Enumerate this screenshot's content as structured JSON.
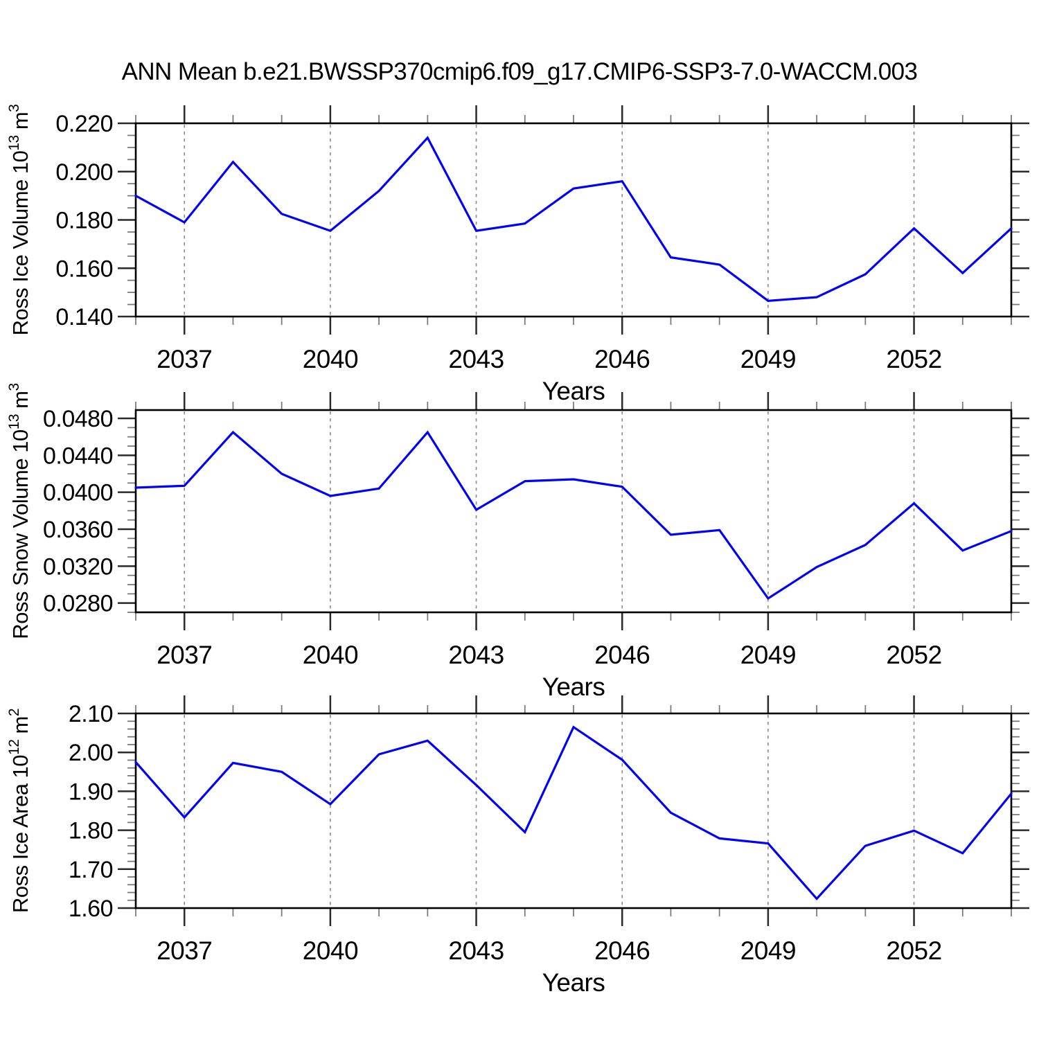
{
  "page": {
    "title": "ANN Mean b.e21.BWSSP370cmip6.f09_g17.CMIP6-SSP3-7.0-WACCM.003",
    "background": "#ffffff"
  },
  "style": {
    "line_color": "#0000ff",
    "grid_color": "#8a8a8a",
    "border_color": "#000000",
    "major_tick_color": "#2a2a2a",
    "minor_tick_color": "#7a7a7a"
  },
  "x_axis": {
    "label": "Years",
    "range": [
      2036,
      2054
    ],
    "major_ticks": [
      2037,
      2040,
      2043,
      2046,
      2049,
      2052
    ],
    "minor_step": 1,
    "gridlines": "vertical-dashed-at-major-ticks"
  },
  "chart_data": [
    {
      "type": "line",
      "name": "ross-ice-volume",
      "ylabel_plain": "Ross Ice Volume 10^13 m^3",
      "ylabel_parts": [
        {
          "t": "Ross Ice Volume 10"
        },
        {
          "t": "13",
          "sup": true
        },
        {
          "t": " m",
          "sup": false
        },
        {
          "t": "3",
          "sup": true
        }
      ],
      "xlabel": "Years",
      "x": [
        2036,
        2037,
        2038,
        2039,
        2040,
        2041,
        2042,
        2043,
        2044,
        2045,
        2046,
        2047,
        2048,
        2049,
        2050,
        2051,
        2052,
        2053,
        2054
      ],
      "values": [
        0.19,
        0.179,
        0.204,
        0.1825,
        0.1755,
        0.192,
        0.214,
        0.1755,
        0.1785,
        0.193,
        0.196,
        0.1645,
        0.1615,
        0.1465,
        0.148,
        0.1575,
        0.1765,
        0.158,
        0.1765
      ],
      "ylim": [
        0.14,
        0.22
      ],
      "ytick_values": [
        0.14,
        0.16,
        0.18,
        0.2,
        0.22
      ],
      "ytick_labels": [
        "0.140",
        "0.160",
        "0.180",
        "0.200",
        "0.220"
      ],
      "y_minor_step": 0.005,
      "grid": "vertical-only",
      "legend": "none"
    },
    {
      "type": "line",
      "name": "ross-snow-volume",
      "ylabel_plain": "Ross Snow Volume 10^13 m^3",
      "ylabel_parts": [
        {
          "t": "Ross Snow Volume 10"
        },
        {
          "t": "13",
          "sup": true
        },
        {
          "t": " m",
          "sup": false
        },
        {
          "t": "3",
          "sup": true
        }
      ],
      "xlabel": "Years",
      "x": [
        2036,
        2037,
        2038,
        2039,
        2040,
        2041,
        2042,
        2043,
        2044,
        2045,
        2046,
        2047,
        2048,
        2049,
        2050,
        2051,
        2052,
        2053,
        2054
      ],
      "values": [
        0.0405,
        0.0407,
        0.0465,
        0.042,
        0.0396,
        0.0404,
        0.0465,
        0.0381,
        0.0412,
        0.0414,
        0.0406,
        0.0354,
        0.0359,
        0.0285,
        0.0319,
        0.0343,
        0.0388,
        0.0337,
        0.0358
      ],
      "ylim": [
        0.027,
        0.0489
      ],
      "ytick_values": [
        0.028,
        0.032,
        0.036,
        0.04,
        0.044,
        0.048
      ],
      "ytick_labels": [
        "0.0280",
        "0.0320",
        "0.0360",
        "0.0400",
        "0.0440",
        "0.0480"
      ],
      "y_minor_step": 0.001,
      "grid": "vertical-only",
      "legend": "none"
    },
    {
      "type": "line",
      "name": "ross-ice-area",
      "ylabel_plain": "Ross Ice Area 10^12 m^2",
      "ylabel_parts": [
        {
          "t": "Ross Ice Area 10"
        },
        {
          "t": "12",
          "sup": true
        },
        {
          "t": " m",
          "sup": false
        },
        {
          "t": "2",
          "sup": true
        }
      ],
      "xlabel": "Years",
      "x": [
        2036,
        2037,
        2038,
        2039,
        2040,
        2041,
        2042,
        2043,
        2044,
        2045,
        2046,
        2047,
        2048,
        2049,
        2050,
        2051,
        2052,
        2053,
        2054
      ],
      "values": [
        1.975,
        1.833,
        1.973,
        1.95,
        1.867,
        1.995,
        2.03,
        1.916,
        1.795,
        2.065,
        1.981,
        1.845,
        1.779,
        1.766,
        1.624,
        1.76,
        1.799,
        1.741,
        1.894
      ],
      "ylim": [
        1.6,
        2.1
      ],
      "ytick_values": [
        1.6,
        1.7,
        1.8,
        1.9,
        2.0,
        2.1
      ],
      "ytick_labels": [
        "1.60",
        "1.70",
        "1.80",
        "1.90",
        "2.00",
        "2.10"
      ],
      "y_minor_step": 0.02,
      "grid": "vertical-only",
      "legend": "none"
    }
  ]
}
